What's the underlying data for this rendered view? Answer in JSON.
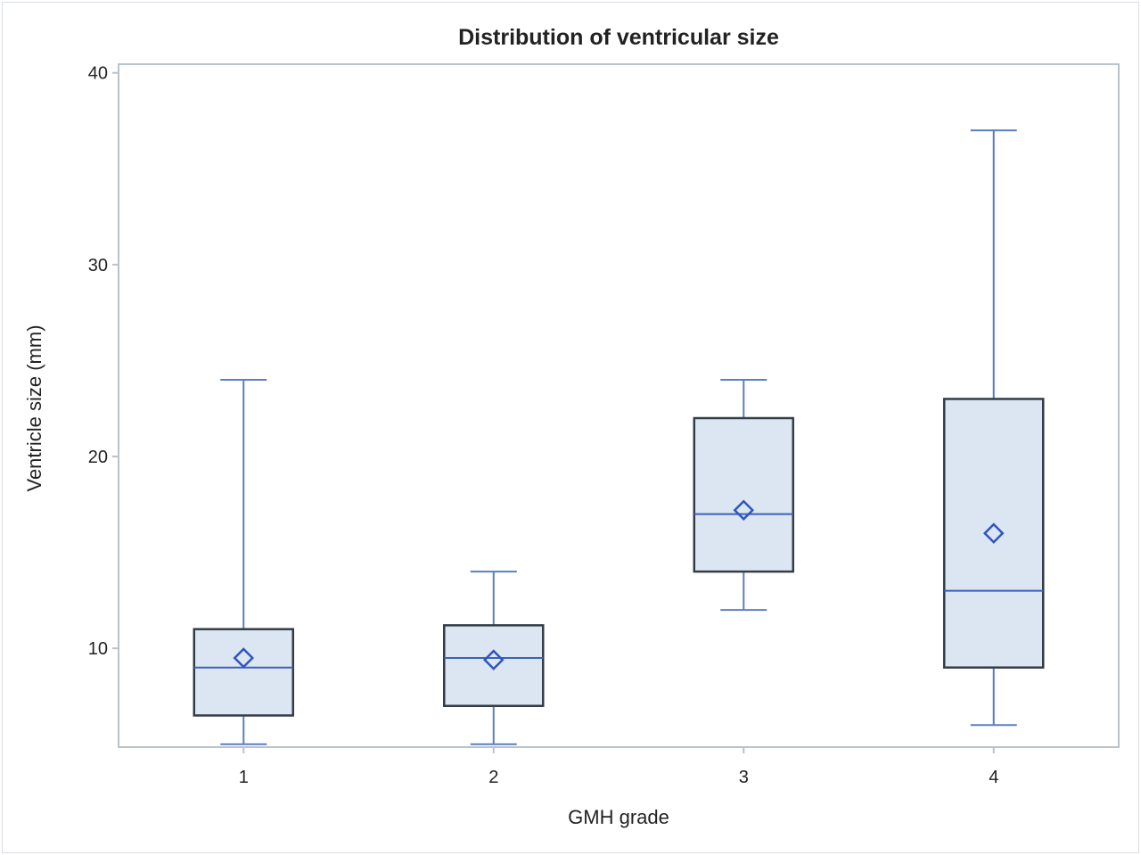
{
  "chart_data": {
    "type": "boxplot",
    "title": "Distribution of ventricular size",
    "xlabel": "GMH grade",
    "ylabel": "Ventricle size (mm)",
    "ylim": [
      4.85,
      40.45
    ],
    "yticks": [
      10,
      20,
      30,
      40
    ],
    "categories": [
      "1",
      "2",
      "3",
      "4"
    ],
    "boxes": [
      {
        "category": "1",
        "min": 5,
        "q1": 6.5,
        "median": 9,
        "q3": 11,
        "max": 24,
        "mean": 9.5
      },
      {
        "category": "2",
        "min": 5,
        "q1": 7,
        "median": 9.5,
        "q3": 11.2,
        "max": 14,
        "mean": 9.4
      },
      {
        "category": "3",
        "min": 12,
        "q1": 14,
        "median": 17,
        "q3": 22,
        "max": 24,
        "mean": 17.2
      },
      {
        "category": "4",
        "min": 6,
        "q1": 9,
        "median": 13,
        "q3": 23,
        "max": 37,
        "mean": 16
      }
    ],
    "grid": false,
    "colors": {
      "box_fill": "#dce6f2",
      "box_edge": "#333d47",
      "whisker": "#5b7fc0",
      "median": "#3a62b8",
      "mean": "#2f55c0",
      "frame": "#b9c3c9"
    }
  }
}
